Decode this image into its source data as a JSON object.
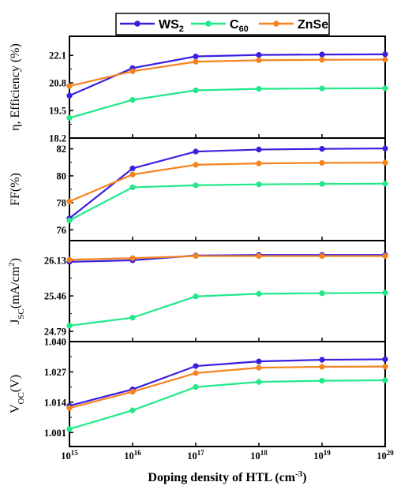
{
  "chart_data": {
    "type": "line",
    "x_axis": {
      "label_main": "Doping density of HTL (cm",
      "label_sup": "-3",
      "label_close": ")",
      "scale": "log",
      "range": [
        1000000000000000.0,
        1e+20
      ],
      "tick_base": "10",
      "tick_exponents": [
        "15",
        "16",
        "17",
        "18",
        "19",
        "20"
      ]
    },
    "x": [
      1000000000000000.0,
      1e+16,
      1e+17,
      1e+18,
      1e+19,
      1e+20
    ],
    "legend": {
      "position": "top-center",
      "entries": [
        {
          "base": "WS",
          "sub": "2",
          "color": "#3a1fe0"
        },
        {
          "base": "C",
          "sub": "60",
          "color": "#22e88a"
        },
        {
          "base": "ZnSe",
          "sub": "",
          "color": "#f5841f"
        }
      ]
    },
    "panels": [
      {
        "ylabel_parts": [
          {
            "t": "η, Efficiency (%)",
            "sub": false
          }
        ],
        "ylim": [
          18.2,
          23.0
        ],
        "ticks": [
          18.2,
          19.5,
          20.8,
          22.1
        ],
        "tick_labels": [
          "18.2",
          "19.5",
          "20.8",
          "22.1"
        ],
        "series": [
          {
            "name": "WS2",
            "color": "#3a1fe0",
            "values": [
              20.2,
              21.5,
              22.05,
              22.12,
              22.14,
              22.15
            ]
          },
          {
            "name": "C60",
            "color": "#22e88a",
            "values": [
              19.15,
              20.0,
              20.45,
              20.52,
              20.54,
              20.55
            ]
          },
          {
            "name": "ZnSe",
            "color": "#f5841f",
            "values": [
              20.65,
              21.35,
              21.8,
              21.87,
              21.89,
              21.9
            ]
          }
        ]
      },
      {
        "ylabel_parts": [
          {
            "t": "FF(%)",
            "sub": false
          }
        ],
        "ylim": [
          75.2,
          82.8
        ],
        "ticks": [
          76,
          78,
          80,
          82
        ],
        "tick_labels": [
          "76",
          "78",
          "80",
          "82"
        ],
        "series": [
          {
            "name": "WS2",
            "color": "#3a1fe0",
            "values": [
              76.85,
              80.55,
              81.8,
              81.95,
              82.0,
              82.03
            ]
          },
          {
            "name": "C60",
            "color": "#22e88a",
            "values": [
              76.7,
              79.15,
              79.3,
              79.37,
              79.4,
              79.42
            ]
          },
          {
            "name": "ZnSe",
            "color": "#f5841f",
            "values": [
              78.1,
              80.1,
              80.82,
              80.92,
              80.96,
              80.98
            ]
          }
        ]
      },
      {
        "ylabel_parts": [
          {
            "t": "J",
            "sub": false
          },
          {
            "t": "SC",
            "sub": true
          },
          {
            "t": "(mA/cm",
            "sub": false
          },
          {
            "t": "2",
            "sup": true
          },
          {
            "t": ")",
            "sub": false
          }
        ],
        "ylim": [
          24.6,
          26.5
        ],
        "ticks": [
          24.79,
          25.46,
          26.13
        ],
        "tick_labels": [
          "24.79",
          "25.46",
          "26.13"
        ],
        "series": [
          {
            "name": "WS2",
            "color": "#3a1fe0",
            "values": [
              26.1,
              26.13,
              26.22,
              26.23,
              26.23,
              26.23
            ]
          },
          {
            "name": "C60",
            "color": "#22e88a",
            "values": [
              24.9,
              25.05,
              25.45,
              25.5,
              25.51,
              25.52
            ]
          },
          {
            "name": "ZnSe",
            "color": "#f5841f",
            "values": [
              26.14,
              26.17,
              26.21,
              26.21,
              26.21,
              26.21
            ]
          }
        ]
      },
      {
        "ylabel_parts": [
          {
            "t": "V",
            "sub": false
          },
          {
            "t": "OC",
            "sub": true
          },
          {
            "t": "(V)",
            "sub": false
          }
        ],
        "ylim": [
          0.995,
          1.04
        ],
        "ticks": [
          1.001,
          1.014,
          1.027,
          1.04
        ],
        "tick_labels": [
          "1.001",
          "1.014",
          "1.027",
          "1.040"
        ],
        "series": [
          {
            "name": "WS2",
            "color": "#3a1fe0",
            "values": [
              1.0125,
              1.0195,
              1.0295,
              1.0315,
              1.0322,
              1.0324
            ]
          },
          {
            "name": "C60",
            "color": "#22e88a",
            "values": [
              1.0025,
              1.0105,
              1.0205,
              1.0227,
              1.0232,
              1.0234
            ]
          },
          {
            "name": "ZnSe",
            "color": "#f5841f",
            "values": [
              1.0115,
              1.0185,
              1.0265,
              1.0288,
              1.0292,
              1.0293
            ]
          }
        ]
      }
    ]
  }
}
